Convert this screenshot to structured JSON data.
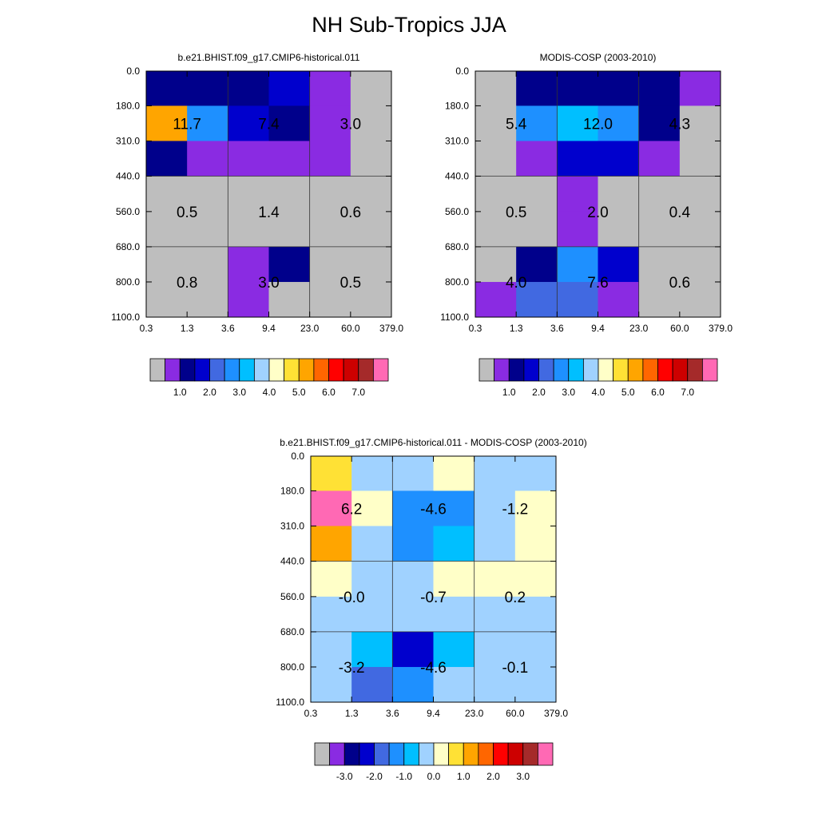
{
  "main_title": "NH Sub-Tropics JJA",
  "colors": {
    "absolute_palette": [
      "#bebebe",
      "#8a2be2",
      "#00008b",
      "#0000cd",
      "#4169e1",
      "#1e90ff",
      "#00bfff",
      "#a0d2ff",
      "#ffffc8",
      "#ffe135",
      "#ffa500",
      "#ff6600",
      "#ff0000",
      "#cd0000",
      "#a52a2a",
      "#ff69b4"
    ],
    "difference_palette": [
      "#bebebe",
      "#8a2be2",
      "#00008b",
      "#0000cd",
      "#4169e1",
      "#1e90ff",
      "#00bfff",
      "#a0d2ff",
      "#ffffc8",
      "#ffe135",
      "#ffa500",
      "#ff6600",
      "#ff0000",
      "#cd0000",
      "#a52a2a",
      "#ff69b4"
    ]
  },
  "chart_data": [
    {
      "type": "heatmap",
      "id": "model",
      "title": "b.e21.BHIST.f09_g17.CMIP6-historical.011",
      "x_ticks": [
        "0.3",
        "1.3",
        "3.6",
        "9.4",
        "23.0",
        "60.0",
        "379.0"
      ],
      "y_ticks": [
        "0.0",
        "180.0",
        "310.0",
        "440.0",
        "560.0",
        "680.0",
        "800.0",
        "1100.0"
      ],
      "cells": [
        [
          2,
          2,
          2,
          3,
          1,
          0
        ],
        [
          10,
          5,
          3,
          2,
          1,
          0
        ],
        [
          2,
          1,
          1,
          1,
          1,
          0
        ],
        [
          0,
          0,
          0,
          0,
          0,
          0
        ],
        [
          0,
          0,
          0,
          0,
          0,
          0
        ],
        [
          0,
          0,
          1,
          2,
          0,
          0
        ],
        [
          0,
          0,
          1,
          0,
          0,
          0
        ]
      ],
      "block_values": [
        [
          "11.7",
          "7.4",
          "3.0"
        ],
        [
          "0.5",
          "1.4",
          "0.6"
        ],
        [
          "0.8",
          "3.0",
          "0.5"
        ]
      ],
      "colorbar_labels": [
        "1.0",
        "2.0",
        "3.0",
        "4.0",
        "5.0",
        "6.0",
        "7.0"
      ]
    },
    {
      "type": "heatmap",
      "id": "obs",
      "title": "MODIS-COSP (2003-2010)",
      "x_ticks": [
        "0.3",
        "1.3",
        "3.6",
        "9.4",
        "23.0",
        "60.0",
        "379.0"
      ],
      "y_ticks": [
        "0.0",
        "180.0",
        "310.0",
        "440.0",
        "560.0",
        "680.0",
        "800.0",
        "1100.0"
      ],
      "cells": [
        [
          0,
          2,
          2,
          2,
          2,
          1
        ],
        [
          0,
          5,
          6,
          5,
          2,
          0
        ],
        [
          0,
          1,
          3,
          3,
          1,
          0
        ],
        [
          0,
          0,
          1,
          0,
          0,
          0
        ],
        [
          0,
          0,
          1,
          0,
          0,
          0
        ],
        [
          0,
          2,
          5,
          3,
          0,
          0
        ],
        [
          1,
          4,
          4,
          1,
          0,
          0
        ]
      ],
      "block_values": [
        [
          "5.4",
          "12.0",
          "4.3"
        ],
        [
          "0.5",
          "2.0",
          "0.4"
        ],
        [
          "4.0",
          "7.6",
          "0.6"
        ]
      ],
      "colorbar_labels": [
        "1.0",
        "2.0",
        "3.0",
        "4.0",
        "5.0",
        "6.0",
        "7.0"
      ]
    },
    {
      "type": "heatmap",
      "id": "diff",
      "title": "b.e21.BHIST.f09_g17.CMIP6-historical.011 - MODIS-COSP (2003-2010)",
      "x_ticks": [
        "0.3",
        "1.3",
        "3.6",
        "9.4",
        "23.0",
        "60.0",
        "379.0"
      ],
      "y_ticks": [
        "0.0",
        "180.0",
        "310.0",
        "440.0",
        "560.0",
        "680.0",
        "800.0",
        "1100.0"
      ],
      "cells": [
        [
          9,
          7,
          7,
          8,
          7,
          7
        ],
        [
          15,
          8,
          5,
          5,
          7,
          8
        ],
        [
          10,
          7,
          5,
          6,
          7,
          8
        ],
        [
          8,
          7,
          7,
          8,
          8,
          8
        ],
        [
          7,
          7,
          7,
          7,
          7,
          7
        ],
        [
          7,
          6,
          3,
          6,
          7,
          7
        ],
        [
          7,
          4,
          5,
          7,
          7,
          7
        ]
      ],
      "block_values": [
        [
          "6.2",
          "-4.6",
          "-1.2"
        ],
        [
          "-0.0",
          "-0.7",
          "0.2"
        ],
        [
          "-3.2",
          "-4.6",
          "-0.1"
        ]
      ],
      "colorbar_labels": [
        "-3.0",
        "-2.0",
        "-1.0",
        "0.0",
        "1.0",
        "2.0",
        "3.0"
      ]
    }
  ]
}
